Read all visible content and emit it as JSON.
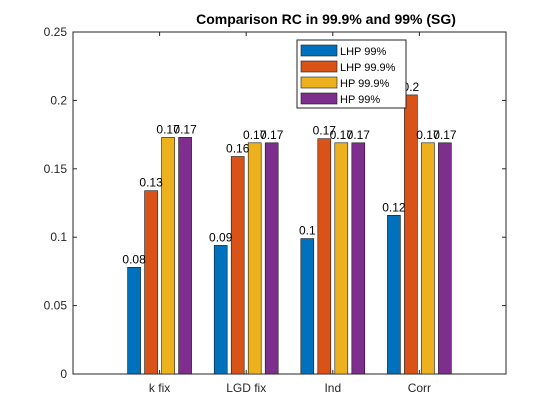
{
  "chart_data": {
    "type": "bar",
    "title": "Comparison RC in 99.9% and 99% (SG)",
    "xlabel": "",
    "ylabel": "",
    "categories": [
      "k fix",
      "LGD fix",
      "Ind",
      "Corr"
    ],
    "series": [
      {
        "name": "LHP 99%",
        "values": [
          0.078,
          0.094,
          0.099,
          0.116
        ],
        "labels": [
          "0.08",
          "0.09",
          "0.1",
          "0.12"
        ]
      },
      {
        "name": "LHP 99.9%",
        "values": [
          0.134,
          0.159,
          0.172,
          0.204
        ],
        "labels": [
          "0.13",
          "0.16",
          "0.17",
          "0.2"
        ]
      },
      {
        "name": "HP 99.9%",
        "values": [
          0.173,
          0.169,
          0.169,
          0.169
        ],
        "labels": [
          "0.17",
          "0.17",
          "0.17",
          "0.17"
        ]
      },
      {
        "name": "HP 99%",
        "values": [
          0.173,
          0.169,
          0.169,
          0.169
        ],
        "labels": [
          "0.17",
          "0.17",
          "0.17",
          "0.17"
        ]
      }
    ],
    "ylim": [
      0,
      0.25
    ],
    "yticks": [
      0,
      0.05,
      0.1,
      0.15,
      0.2,
      0.25
    ],
    "ytick_labels": [
      "0",
      "0.05",
      "0.1",
      "0.15",
      "0.2",
      "0.25"
    ],
    "colors": [
      "#0072BD",
      "#D95319",
      "#EDB120",
      "#7E2F8E"
    ],
    "grid": false,
    "legend_placement": "top-right"
  }
}
